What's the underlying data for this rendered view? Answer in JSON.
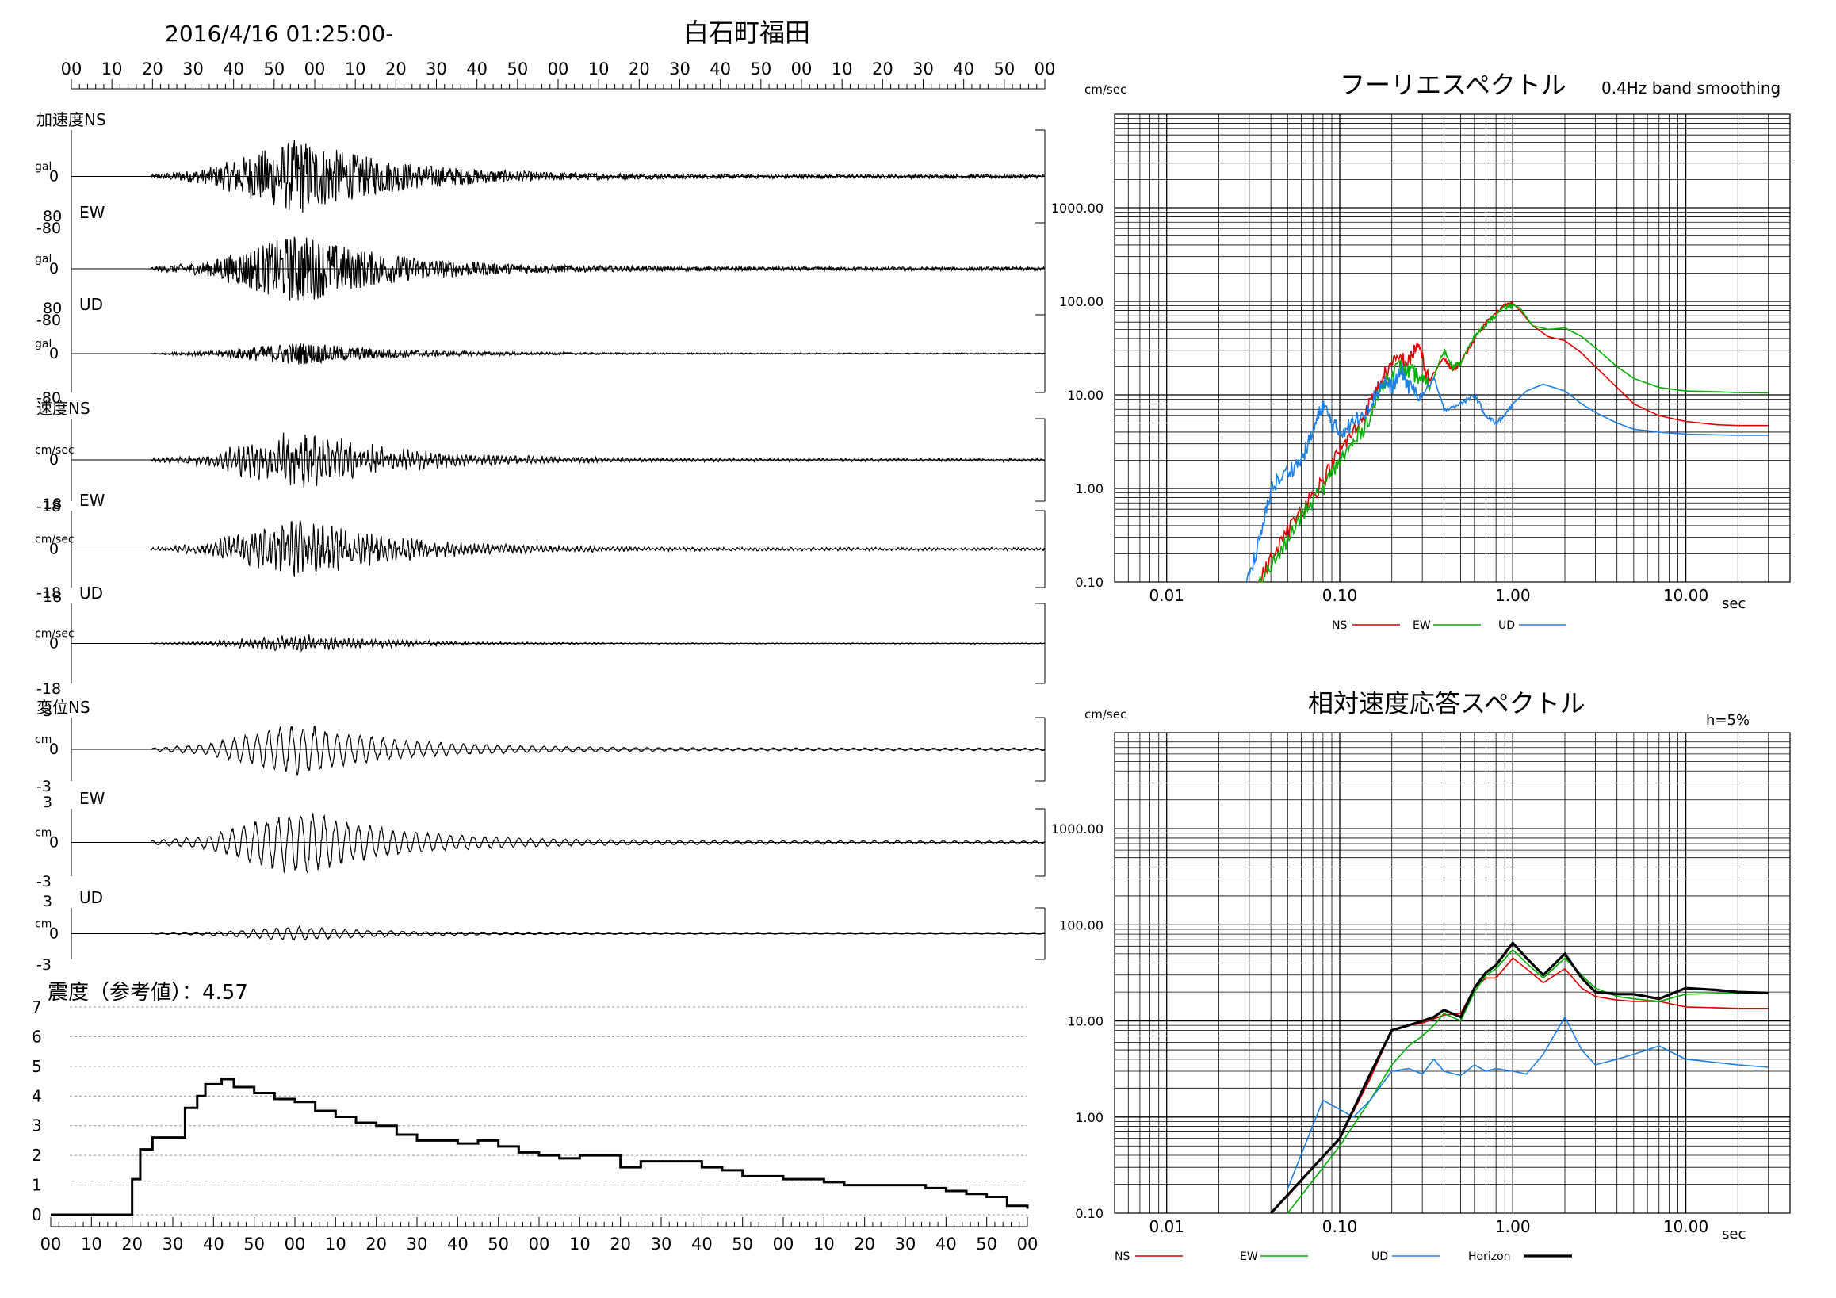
{
  "header": {
    "datetime": "2016/4/16 01:25:00-",
    "station": "白石町福田"
  },
  "time_axis_ticks": [
    "00",
    "10",
    "20",
    "30",
    "40",
    "50",
    "00",
    "10",
    "20",
    "30",
    "40",
    "50",
    "00",
    "10",
    "20",
    "30",
    "40",
    "50",
    "00",
    "10",
    "20",
    "30",
    "40",
    "50",
    "00"
  ],
  "waveform_panels": [
    {
      "group_label": "加速度",
      "component": "NS",
      "unit": "gal",
      "max_label": "",
      "min_label": "-80",
      "zero_label": "0",
      "amplitude": 70,
      "color": "#000000"
    },
    {
      "group_label": "",
      "component": "EW",
      "unit": "gal",
      "max_label": "80",
      "min_label": "-80",
      "zero_label": "0",
      "amplitude": 65,
      "color": "#000000"
    },
    {
      "group_label": "",
      "component": "UD",
      "unit": "gal",
      "max_label": "80",
      "min_label": "-80",
      "zero_label": "0",
      "amplitude": 25,
      "color": "#000000"
    },
    {
      "group_label": "速度",
      "component": "NS",
      "unit": "cm/sec",
      "max_label": "",
      "min_label": "-18",
      "zero_label": "0",
      "amplitude": 13,
      "color": "#000000"
    },
    {
      "group_label": "",
      "component": "EW",
      "unit": "cm/sec",
      "max_label": "18",
      "min_label": "-18",
      "zero_label": "0",
      "amplitude": 14,
      "color": "#000000"
    },
    {
      "group_label": "",
      "component": "UD",
      "unit": "cm/sec",
      "max_label": "18",
      "min_label": "-18",
      "zero_label": "0",
      "amplitude": 4,
      "color": "#000000"
    },
    {
      "group_label": "変位",
      "component": "NS",
      "unit": "cm",
      "max_label": "3",
      "min_label": "-3",
      "zero_label": "0",
      "amplitude": 2.3,
      "color": "#000000"
    },
    {
      "group_label": "",
      "component": "EW",
      "unit": "cm",
      "max_label": "3",
      "min_label": "-3",
      "zero_label": "0",
      "amplitude": 2.8,
      "color": "#000000"
    },
    {
      "group_label": "",
      "component": "UD",
      "unit": "cm",
      "max_label": "3",
      "min_label": "-3",
      "zero_label": "0",
      "amplitude": 0.8,
      "color": "#000000"
    }
  ],
  "intensity": {
    "title": "震度（参考値）：4.57",
    "y_ticks": [
      "0",
      "1",
      "2",
      "3",
      "4",
      "5",
      "6",
      "7"
    ],
    "x_ticks": [
      "00",
      "10",
      "20",
      "30",
      "40",
      "50",
      "00",
      "10",
      "20",
      "30",
      "40",
      "50",
      "00",
      "10",
      "20",
      "30",
      "40",
      "50",
      "00",
      "10",
      "20",
      "30",
      "40",
      "50",
      "00"
    ]
  },
  "fourier": {
    "title": "フーリエスペクトル",
    "note": "0.4Hz band smoothing",
    "unit": "cm/sec",
    "x_label": "sec",
    "y_ticks": [
      "0.10",
      "1.00",
      "10.00",
      "100.00",
      "1000.00"
    ],
    "x_ticks": [
      "0.01",
      "0.10",
      "1.00",
      "10.00"
    ],
    "legend": [
      {
        "label": "NS",
        "color": "#e00000"
      },
      {
        "label": "EW",
        "color": "#00b000"
      },
      {
        "label": "UD",
        "color": "#1e7fe6"
      }
    ]
  },
  "response": {
    "title": "相対速度応答スペクトル",
    "note": "h=5%",
    "unit": "cm/sec",
    "x_label": "sec",
    "y_ticks": [
      "0.10",
      "1.00",
      "10.00",
      "100.00",
      "1000.00"
    ],
    "x_ticks": [
      "0.01",
      "0.10",
      "1.00",
      "10.00"
    ],
    "legend": [
      {
        "label": "NS",
        "color": "#e00000"
      },
      {
        "label": "EW",
        "color": "#00b000"
      },
      {
        "label": "UD",
        "color": "#1e7fe6"
      },
      {
        "label": "Horizon",
        "color": "#000000"
      }
    ]
  },
  "chart_data": [
    {
      "type": "line",
      "title": "震度（参考値）：4.57",
      "xlabel": "",
      "ylabel": "",
      "ylim": [
        0,
        7
      ],
      "x_unit": "seconds from 01:25:00",
      "series": [
        {
          "name": "",
          "x": [
            0,
            19,
            20,
            22,
            25,
            30,
            33,
            36,
            38,
            42,
            45,
            50,
            55,
            60,
            65,
            70,
            75,
            80,
            85,
            90,
            95,
            100,
            105,
            110,
            115,
            120,
            125,
            130,
            135,
            140,
            145,
            150,
            155,
            160,
            165,
            170,
            175,
            180,
            185,
            190,
            195,
            200,
            205,
            210,
            215,
            220,
            225,
            230,
            235,
            240
          ],
          "y": [
            0,
            0,
            1.2,
            2.2,
            2.6,
            2.6,
            3.6,
            4.0,
            4.4,
            4.57,
            4.3,
            4.1,
            3.9,
            3.8,
            3.5,
            3.3,
            3.1,
            3.0,
            2.7,
            2.5,
            2.5,
            2.4,
            2.5,
            2.3,
            2.1,
            2.0,
            1.9,
            2.0,
            2.0,
            1.6,
            1.8,
            1.8,
            1.8,
            1.6,
            1.5,
            1.3,
            1.3,
            1.2,
            1.2,
            1.1,
            1.0,
            1.0,
            1.0,
            1.0,
            0.9,
            0.8,
            0.7,
            0.6,
            0.3,
            0.2
          ]
        }
      ]
    },
    {
      "type": "line",
      "title": "フーリエスペクトル",
      "xlabel": "sec",
      "ylabel": "cm/sec",
      "x_scale": "log",
      "y_scale": "log",
      "xlim": [
        0.005,
        40
      ],
      "ylim": [
        0.1,
        10000
      ],
      "series": [
        {
          "name": "NS",
          "x": [
            0.034,
            0.045,
            0.06,
            0.08,
            0.1,
            0.12,
            0.15,
            0.18,
            0.22,
            0.25,
            0.28,
            0.33,
            0.4,
            0.45,
            0.5,
            0.6,
            0.75,
            0.9,
            1.0,
            1.1,
            1.3,
            1.6,
            2.0,
            2.5,
            3.0,
            4.0,
            5.0,
            7.0,
            10.0,
            15.0,
            20.0,
            30.0
          ],
          "y": [
            0.1,
            0.25,
            0.6,
            1.2,
            2.5,
            4.0,
            8.0,
            16.0,
            25.0,
            22.0,
            35.0,
            14.0,
            25.0,
            18.0,
            22.0,
            40.0,
            70.0,
            90.0,
            95.0,
            80.0,
            55.0,
            42.0,
            38.0,
            28.0,
            20.0,
            12.0,
            8.0,
            6.0,
            5.2,
            4.8,
            4.7,
            4.7
          ]
        },
        {
          "name": "EW",
          "x": [
            0.034,
            0.045,
            0.06,
            0.08,
            0.1,
            0.12,
            0.15,
            0.18,
            0.22,
            0.25,
            0.28,
            0.33,
            0.4,
            0.45,
            0.5,
            0.6,
            0.75,
            0.9,
            1.0,
            1.1,
            1.3,
            1.6,
            2.0,
            2.5,
            3.0,
            4.0,
            5.0,
            7.0,
            10.0,
            15.0,
            20.0,
            30.0
          ],
          "y": [
            0.1,
            0.2,
            0.5,
            1.0,
            2.0,
            3.0,
            6.0,
            14.0,
            20.0,
            18.0,
            16.0,
            12.0,
            30.0,
            20.0,
            22.0,
            42.0,
            65.0,
            85.0,
            92.0,
            85.0,
            55.0,
            50.0,
            52.0,
            42.0,
            32.0,
            20.0,
            15.0,
            12.0,
            11.0,
            10.8,
            10.6,
            10.5
          ]
        },
        {
          "name": "UD",
          "x": [
            0.029,
            0.035,
            0.04,
            0.05,
            0.06,
            0.07,
            0.08,
            0.09,
            0.1,
            0.12,
            0.15,
            0.18,
            0.2,
            0.23,
            0.25,
            0.3,
            0.35,
            0.4,
            0.5,
            0.6,
            0.7,
            0.8,
            0.9,
            1.0,
            1.2,
            1.5,
            2.0,
            2.5,
            3.0,
            4.0,
            5.0,
            7.0,
            10.0,
            20.0,
            30.0
          ],
          "y": [
            0.1,
            0.3,
            1.0,
            1.5,
            2.0,
            4.0,
            8.0,
            5.0,
            4.0,
            5.0,
            8.0,
            14.0,
            12.0,
            18.0,
            12.0,
            10.0,
            15.0,
            7.0,
            8.0,
            10.0,
            6.0,
            5.0,
            6.0,
            8.0,
            11.0,
            13.0,
            11.0,
            8.0,
            6.5,
            5.0,
            4.3,
            4.0,
            3.8,
            3.7,
            3.7
          ]
        }
      ]
    },
    {
      "type": "line",
      "title": "相対速度応答スペクトル",
      "xlabel": "sec",
      "ylabel": "cm/sec",
      "x_scale": "log",
      "y_scale": "log",
      "xlim": [
        0.005,
        40
      ],
      "ylim": [
        0.1,
        10000
      ],
      "series": [
        {
          "name": "NS",
          "x": [
            0.05,
            0.1,
            0.15,
            0.2,
            0.25,
            0.3,
            0.35,
            0.4,
            0.5,
            0.6,
            0.7,
            0.8,
            1.0,
            1.2,
            1.5,
            2.0,
            2.5,
            3.0,
            4.0,
            5.0,
            7.0,
            10.0,
            20.0,
            30.0
          ],
          "y": [
            0.15,
            0.6,
            2.5,
            8.0,
            9.0,
            9.5,
            10.5,
            11.5,
            12.0,
            22.0,
            28.0,
            28.0,
            45.0,
            35.0,
            25.0,
            35.0,
            22.0,
            18.0,
            16.5,
            16.0,
            16.0,
            14.0,
            13.5,
            13.5
          ]
        },
        {
          "name": "EW",
          "x": [
            0.05,
            0.1,
            0.15,
            0.2,
            0.25,
            0.3,
            0.35,
            0.4,
            0.5,
            0.6,
            0.7,
            0.8,
            1.0,
            1.2,
            1.5,
            2.0,
            2.5,
            3.0,
            4.0,
            5.0,
            7.0,
            10.0,
            20.0,
            30.0
          ],
          "y": [
            0.1,
            0.5,
            1.5,
            3.5,
            5.5,
            7.0,
            9.0,
            12.0,
            10.0,
            20.0,
            30.0,
            35.0,
            55.0,
            40.0,
            28.0,
            45.0,
            30.0,
            22.0,
            18.0,
            17.0,
            16.0,
            19.0,
            19.5,
            19.5
          ]
        },
        {
          "name": "UD",
          "x": [
            0.05,
            0.08,
            0.1,
            0.12,
            0.15,
            0.2,
            0.25,
            0.3,
            0.35,
            0.4,
            0.5,
            0.6,
            0.7,
            0.8,
            1.0,
            1.2,
            1.5,
            2.0,
            2.5,
            3.0,
            4.0,
            5.0,
            7.0,
            10.0,
            20.0,
            30.0
          ],
          "y": [
            0.18,
            1.5,
            1.2,
            1.0,
            1.5,
            3.0,
            3.2,
            2.8,
            4.0,
            3.0,
            2.7,
            3.5,
            3.0,
            3.2,
            3.0,
            2.8,
            4.5,
            11.0,
            5.0,
            3.5,
            4.0,
            4.5,
            5.5,
            4.0,
            3.5,
            3.3
          ]
        },
        {
          "name": "Horizon",
          "x": [
            0.04,
            0.1,
            0.15,
            0.2,
            0.25,
            0.3,
            0.35,
            0.4,
            0.5,
            0.6,
            0.7,
            0.8,
            1.0,
            1.2,
            1.5,
            2.0,
            2.5,
            3.0,
            4.0,
            5.0,
            7.0,
            10.0,
            15.0,
            20.0,
            30.0
          ],
          "y": [
            0.1,
            0.6,
            2.8,
            8.0,
            9.0,
            10.0,
            11.0,
            13.0,
            11.0,
            22.0,
            32.0,
            38.0,
            65.0,
            45.0,
            30.0,
            50.0,
            28.0,
            20.0,
            19.0,
            19.0,
            17.0,
            22.0,
            21.0,
            20.0,
            19.5
          ]
        }
      ]
    }
  ]
}
